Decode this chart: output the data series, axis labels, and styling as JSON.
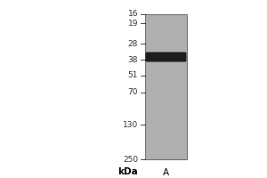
{
  "background_color": "#ffffff",
  "gel_color": "#b0b0b0",
  "gel_border_color": "#707070",
  "lane_label": "A",
  "kda_label": "kDa",
  "marker_positions": [
    250,
    130,
    70,
    51,
    38,
    28,
    19,
    16
  ],
  "marker_labels": [
    "250",
    "130",
    "70",
    "51",
    "38",
    "28",
    "19",
    "16"
  ],
  "band_kda": 36,
  "band_color": "#111111",
  "band_alpha": 0.92,
  "axis_font_size": 6.5,
  "label_font_size": 7.5,
  "fig_width": 3.0,
  "fig_height": 2.0,
  "dpi": 100,
  "log_scale_min": 14.5,
  "log_scale_max": 290
}
